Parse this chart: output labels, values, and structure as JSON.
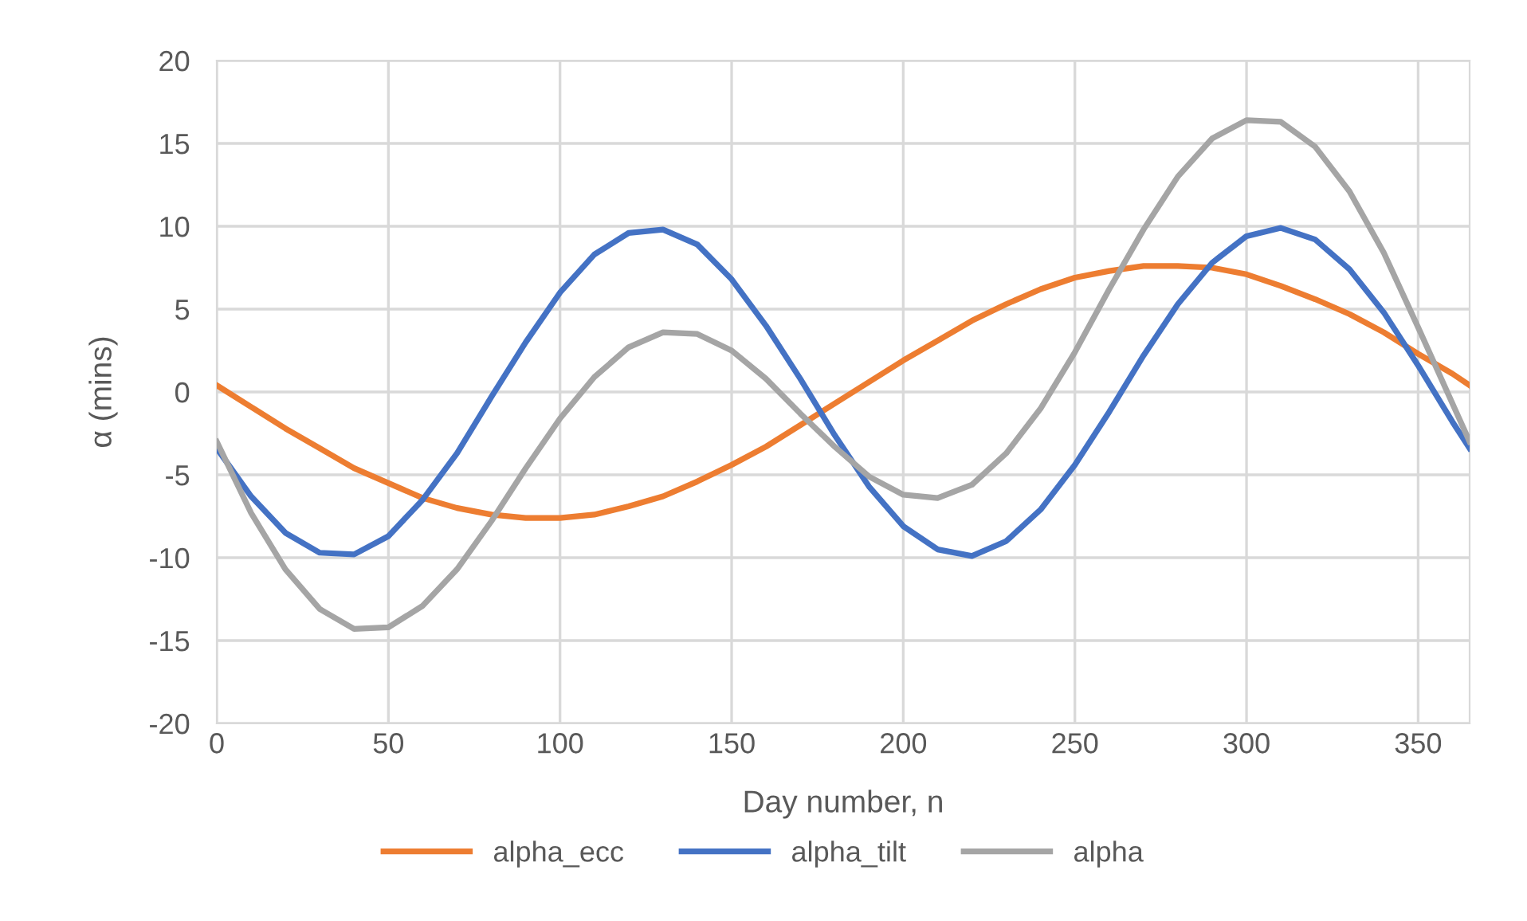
{
  "chart_data": {
    "type": "line",
    "xlabel": "Day number, n",
    "ylabel": "α (mins)",
    "x": [
      0,
      10,
      20,
      30,
      40,
      50,
      60,
      70,
      80,
      90,
      100,
      110,
      120,
      130,
      140,
      150,
      160,
      170,
      180,
      190,
      200,
      210,
      220,
      230,
      240,
      250,
      260,
      270,
      280,
      290,
      300,
      310,
      320,
      330,
      340,
      350,
      360,
      365
    ],
    "series": [
      {
        "name": "alpha_ecc",
        "color": "#ed7d31",
        "values": [
          0.4,
          -0.9,
          -2.2,
          -3.4,
          -4.6,
          -5.5,
          -6.4,
          -7.0,
          -7.4,
          -7.6,
          -7.6,
          -7.4,
          -6.9,
          -6.3,
          -5.4,
          -4.4,
          -3.3,
          -2.0,
          -0.7,
          0.6,
          1.9,
          3.1,
          4.3,
          5.3,
          6.2,
          6.9,
          7.3,
          7.6,
          7.6,
          7.5,
          7.1,
          6.4,
          5.6,
          4.7,
          3.6,
          2.3,
          1.1,
          0.4
        ]
      },
      {
        "name": "alpha_tilt",
        "color": "#4472c4",
        "values": [
          -3.4,
          -6.3,
          -8.5,
          -9.7,
          -9.8,
          -8.7,
          -6.5,
          -3.7,
          -0.3,
          3.0,
          6.0,
          8.3,
          9.6,
          9.8,
          8.9,
          6.8,
          4.0,
          0.8,
          -2.6,
          -5.7,
          -8.1,
          -9.5,
          -9.9,
          -9.0,
          -7.1,
          -4.4,
          -1.2,
          2.2,
          5.3,
          7.8,
          9.4,
          9.9,
          9.2,
          7.4,
          4.8,
          1.6,
          -1.8,
          -3.4
        ]
      },
      {
        "name": "alpha",
        "color": "#a5a5a5",
        "values": [
          -3.0,
          -7.3,
          -10.7,
          -13.1,
          -14.3,
          -14.2,
          -12.9,
          -10.7,
          -7.8,
          -4.6,
          -1.6,
          0.9,
          2.7,
          3.6,
          3.5,
          2.5,
          0.8,
          -1.3,
          -3.3,
          -5.1,
          -6.2,
          -6.4,
          -5.6,
          -3.7,
          -1.0,
          2.4,
          6.2,
          9.8,
          13.0,
          15.3,
          16.4,
          16.3,
          14.8,
          12.1,
          8.4,
          3.9,
          -0.7,
          -3.0
        ]
      }
    ],
    "xlim": [
      0,
      365
    ],
    "xticks": [
      0,
      50,
      100,
      150,
      200,
      250,
      300,
      350
    ],
    "ylim": [
      -20,
      20
    ],
    "yticks": [
      -20,
      -15,
      -10,
      -5,
      0,
      5,
      10,
      15,
      20
    ],
    "grid": true,
    "legend": "bottom",
    "marker": "none",
    "line_style": "solid"
  }
}
